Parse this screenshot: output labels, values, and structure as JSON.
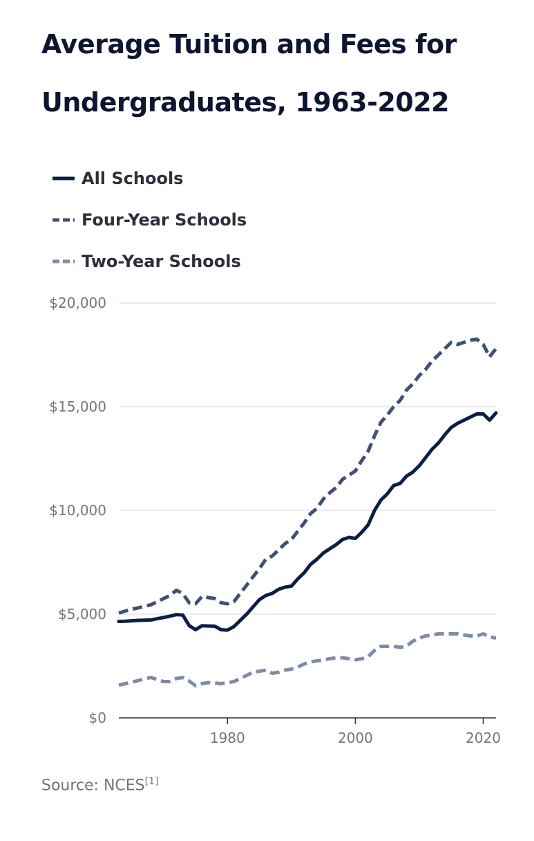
{
  "chart_data": {
    "type": "line",
    "title": "Average Tuition and Fees for Undergraduates, 1963-2022",
    "xlabel": "",
    "ylabel": "",
    "xlim": [
      1963,
      2022
    ],
    "ylim": [
      0,
      20000
    ],
    "x_ticks": [
      1980,
      2000,
      2020
    ],
    "y_ticks": [
      {
        "value": 0,
        "label": "$0"
      },
      {
        "value": 5000,
        "label": "$5,000"
      },
      {
        "value": 10000,
        "label": "$10,000"
      },
      {
        "value": 15000,
        "label": "$15,000"
      },
      {
        "value": 20000,
        "label": "$20,000"
      }
    ],
    "grid": true,
    "legend_position": "top-left",
    "x": [
      1963,
      1964,
      1965,
      1966,
      1967,
      1968,
      1969,
      1970,
      1971,
      1972,
      1973,
      1974,
      1975,
      1976,
      1977,
      1978,
      1979,
      1980,
      1981,
      1982,
      1983,
      1984,
      1985,
      1986,
      1987,
      1988,
      1989,
      1990,
      1991,
      1992,
      1993,
      1994,
      1995,
      1996,
      1997,
      1998,
      1999,
      2000,
      2001,
      2002,
      2003,
      2004,
      2005,
      2006,
      2007,
      2008,
      2009,
      2010,
      2011,
      2012,
      2013,
      2014,
      2015,
      2016,
      2017,
      2018,
      2019,
      2020,
      2021,
      2022
    ],
    "series": [
      {
        "name": "All Schools",
        "color": "#0b1f44",
        "dash": "solid",
        "values": [
          4650,
          4660,
          4680,
          4700,
          4710,
          4720,
          4780,
          4840,
          4900,
          4980,
          4960,
          4450,
          4250,
          4440,
          4430,
          4420,
          4250,
          4230,
          4400,
          4700,
          5000,
          5350,
          5700,
          5900,
          6000,
          6200,
          6300,
          6350,
          6700,
          7000,
          7400,
          7650,
          7950,
          8150,
          8350,
          8600,
          8700,
          8650,
          8950,
          9300,
          10000,
          10500,
          10800,
          11200,
          11300,
          11650,
          11850,
          12150,
          12550,
          12950,
          13250,
          13650,
          14000,
          14200,
          14350,
          14500,
          14650,
          14650,
          14350,
          14700
        ]
      },
      {
        "name": "Four-Year Schools",
        "color": "#3f5074",
        "dash": "dashed",
        "values": [
          5050,
          5150,
          5230,
          5300,
          5380,
          5450,
          5600,
          5750,
          5900,
          6150,
          6000,
          5550,
          5500,
          5850,
          5800,
          5750,
          5550,
          5500,
          5600,
          6000,
          6400,
          6800,
          7200,
          7650,
          7800,
          8100,
          8400,
          8600,
          9000,
          9400,
          9850,
          10100,
          10550,
          10850,
          11100,
          11500,
          11700,
          11900,
          12400,
          12850,
          13600,
          14250,
          14600,
          15000,
          15300,
          15800,
          16100,
          16500,
          16800,
          17200,
          17500,
          17800,
          18100,
          18000,
          18100,
          18200,
          18250,
          18000,
          17400,
          17800
        ]
      },
      {
        "name": "Two-Year Schools",
        "color": "#7e8ca4",
        "dash": "dashed",
        "values": [
          1580,
          1650,
          1720,
          1800,
          1880,
          1950,
          1850,
          1750,
          1750,
          1900,
          1950,
          1780,
          1550,
          1650,
          1700,
          1680,
          1650,
          1700,
          1750,
          1900,
          2050,
          2200,
          2250,
          2300,
          2150,
          2200,
          2300,
          2350,
          2450,
          2600,
          2700,
          2750,
          2800,
          2850,
          2900,
          2900,
          2850,
          2800,
          2850,
          2950,
          3250,
          3450,
          3450,
          3450,
          3400,
          3450,
          3700,
          3850,
          3950,
          4000,
          4050,
          4050,
          4050,
          4050,
          4000,
          3950,
          3950,
          4050,
          3900,
          3850
        ]
      }
    ]
  },
  "source": {
    "label": "Source: NCES",
    "ref": "[1]"
  }
}
